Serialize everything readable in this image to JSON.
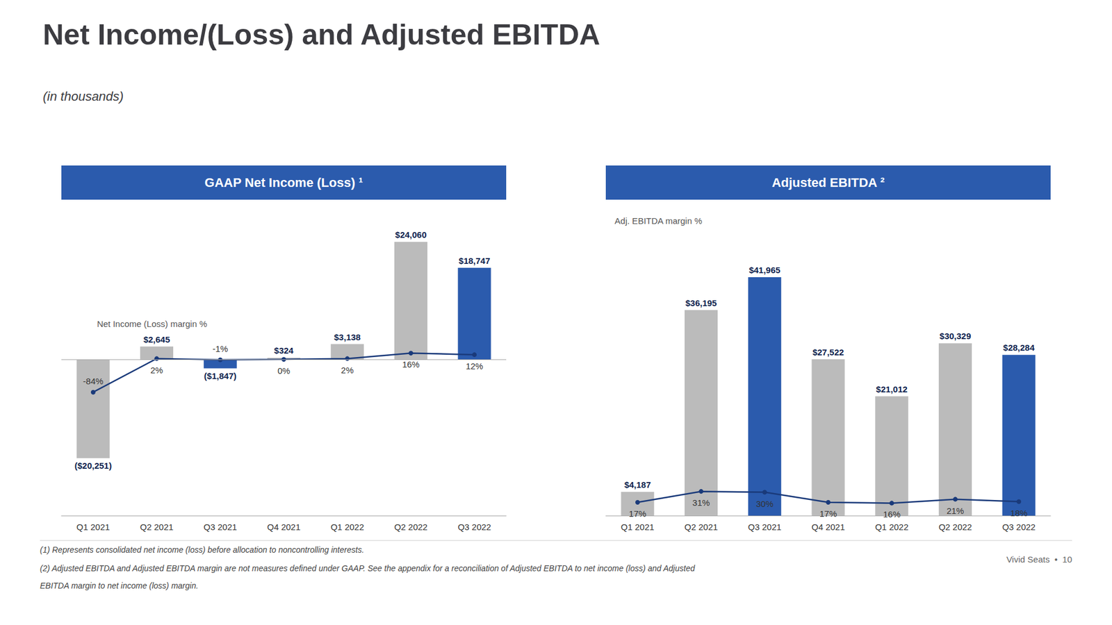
{
  "title": "Net Income/(Loss) and Adjusted EBITDA",
  "subtitle": "(in thousands)",
  "annotations": [
    "(1) Represents consolidated net income (loss) before allocation to noncontrolling interests.",
    "(2) Adjusted EBITDA and Adjusted EBITDA margin are not measures defined under GAAP. See the appendix for a reconciliation of Adjusted EBITDA to net income (loss) and Adjusted",
    "EBITDA margin to net income (loss) margin.",
    "Vivid Seats  •  10"
  ],
  "chart_data": [
    {
      "type": "bar",
      "title": "GAAP Net Income (Loss) ¹",
      "categories": [
        "Q1 2021",
        "Q2 2021",
        "Q3 2021",
        "Q4 2021",
        "Q1 2022",
        "Q2 2022",
        "Q3 2022"
      ],
      "ylim": [
        -32000,
        32000
      ],
      "y2lim": [
        -400,
        400
      ],
      "tick_labels": "x",
      "grid": false,
      "data_labels": true,
      "annotations": [
        "Net Income (Loss) margin %"
      ],
      "series": [
        {
          "type": "bar",
          "colors": [
            "#BBBBBB",
            "#BBBBBB",
            "#2B5BAD",
            "#BBBBBB",
            "#BBBBBB",
            "#BBBBBB",
            "#2B5BAD"
          ],
          "values": [
            -20251,
            2645,
            -1847,
            324,
            3138,
            24060,
            18747
          ],
          "value_labels": [
            "($20,251)",
            "$2,645",
            "($1,847)",
            "$324",
            "$3,138",
            "$24,060",
            "$18,747"
          ]
        },
        {
          "type": "line",
          "axis": "y2",
          "color": "#1A3A7A",
          "marker": "circle",
          "values": [
            -84,
            2,
            -1,
            0,
            2,
            16,
            12
          ],
          "value_labels": [
            "-84%",
            "2%",
            "-1%",
            "0%",
            "2%",
            "16%",
            "12%"
          ]
        }
      ]
    },
    {
      "type": "bar",
      "title": "Adjusted EBITDA ²",
      "categories": [
        "Q1 2021",
        "Q2 2021",
        "Q3 2021",
        "Q4 2021",
        "Q1 2022",
        "Q2 2022",
        "Q3 2022"
      ],
      "ylim": [
        0,
        55000
      ],
      "y2lim": [
        0,
        400
      ],
      "tick_labels": "x",
      "grid": false,
      "data_labels": true,
      "annotations": [
        "Adj. EBITDA margin %"
      ],
      "series": [
        {
          "type": "bar",
          "colors": [
            "#BBBBBB",
            "#BBBBBB",
            "#2B5BAD",
            "#BBBBBB",
            "#BBBBBB",
            "#BBBBBB",
            "#2B5BAD"
          ],
          "values": [
            4187,
            36195,
            41965,
            27522,
            21012,
            30329,
            28284
          ],
          "value_labels": [
            "$4,187",
            "$36,195",
            "$41,965",
            "$27,522",
            "$21,012",
            "$30,329",
            "$28,284"
          ]
        },
        {
          "type": "line",
          "axis": "y2",
          "color": "#1A3A7A",
          "marker": "circle",
          "values": [
            17,
            31,
            30,
            17,
            16,
            21,
            18
          ],
          "value_labels": [
            "17%",
            "31%",
            "30%",
            "17%",
            "16%",
            "21%",
            "18%"
          ]
        }
      ]
    }
  ]
}
